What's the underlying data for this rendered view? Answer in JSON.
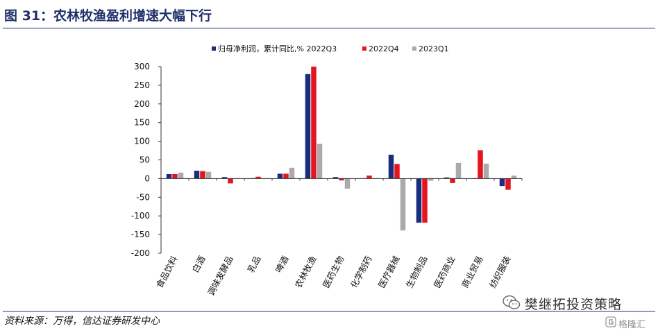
{
  "figure_title": "图 31：农林牧渔盈利增速大幅下行",
  "source_note": "资料来源：万得，信达证券研发中心",
  "watermark": {
    "wechat_label": "樊继拓投资策略",
    "wechat_icon": "wechat-icon",
    "site_label": "格隆汇",
    "site_icon": "gelonghui-icon"
  },
  "colors": {
    "title": "#1f2f6b",
    "s1": "#1a2d7c",
    "s2": "#e5141f",
    "s3": "#aaaaaa"
  },
  "chart_data": {
    "type": "bar",
    "categories": [
      "食品饮料",
      "白酒",
      "调味发酵品",
      "乳品",
      "啤酒",
      "农林牧渔",
      "医药生物",
      "化学制药",
      "医疗器械",
      "生物制品",
      "医药商业",
      "商业贸易",
      "纺织服装"
    ],
    "series": [
      {
        "name": "归母净利润，累计同比,% 2022Q3",
        "values": [
          12,
          21,
          4,
          -1,
          13,
          280,
          4,
          1,
          64,
          -118,
          3,
          0,
          -20
        ]
      },
      {
        "name": "2022Q4",
        "values": [
          12,
          20,
          -13,
          5,
          13,
          300,
          -5,
          8,
          39,
          -118,
          -12,
          76,
          -30
        ]
      },
      {
        "name": "2023Q1",
        "values": [
          16,
          18,
          0,
          0,
          29,
          93,
          -27,
          0,
          -139,
          -6,
          42,
          40,
          8
        ]
      }
    ],
    "ylim": [
      -200,
      300
    ],
    "yticks": [
      300,
      250,
      200,
      150,
      100,
      50,
      0,
      -50,
      -100,
      -150,
      -200
    ],
    "xlabel": "",
    "ylabel": "",
    "legend_position": "top-center",
    "grid": false
  }
}
